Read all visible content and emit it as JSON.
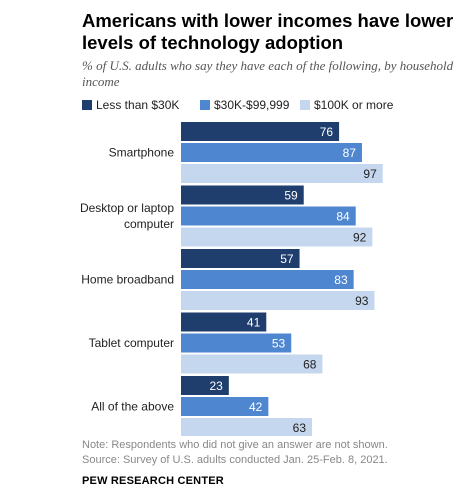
{
  "title": "Americans with lower incomes have lower levels of technology adoption",
  "subtitle": "% of U.S. adults who say they have each of the following, by household income",
  "note": "Note: Respondents who did not give an answer are not shown.",
  "source": "Source: Survey of U.S. adults conducted Jan. 25-Feb. 8, 2021.",
  "brand": "PEW RESEARCH CENTER",
  "colors": {
    "less_than_30k": "#1f3d6d",
    "30k_99999": "#4f86d0",
    "100k_or_more": "#c5d7ee"
  },
  "chart_data": {
    "type": "bar",
    "orientation": "horizontal",
    "categories": [
      [
        "Smartphone"
      ],
      [
        "Desktop or laptop",
        "computer"
      ],
      [
        "Home broadband"
      ],
      [
        "Tablet computer"
      ],
      [
        "All of the above"
      ]
    ],
    "series": [
      {
        "name": "Less than $30K",
        "values": [
          76,
          59,
          57,
          41,
          23
        ],
        "color": "#1f3d6d"
      },
      {
        "name": "$30K-$99,999",
        "values": [
          87,
          84,
          83,
          53,
          42
        ],
        "color": "#4f86d0"
      },
      {
        "name": "$100K or more",
        "values": [
          97,
          92,
          93,
          68,
          63
        ],
        "color": "#c5d7ee"
      }
    ],
    "xlim": [
      0,
      100
    ],
    "legend_position": "top",
    "grid": false
  }
}
